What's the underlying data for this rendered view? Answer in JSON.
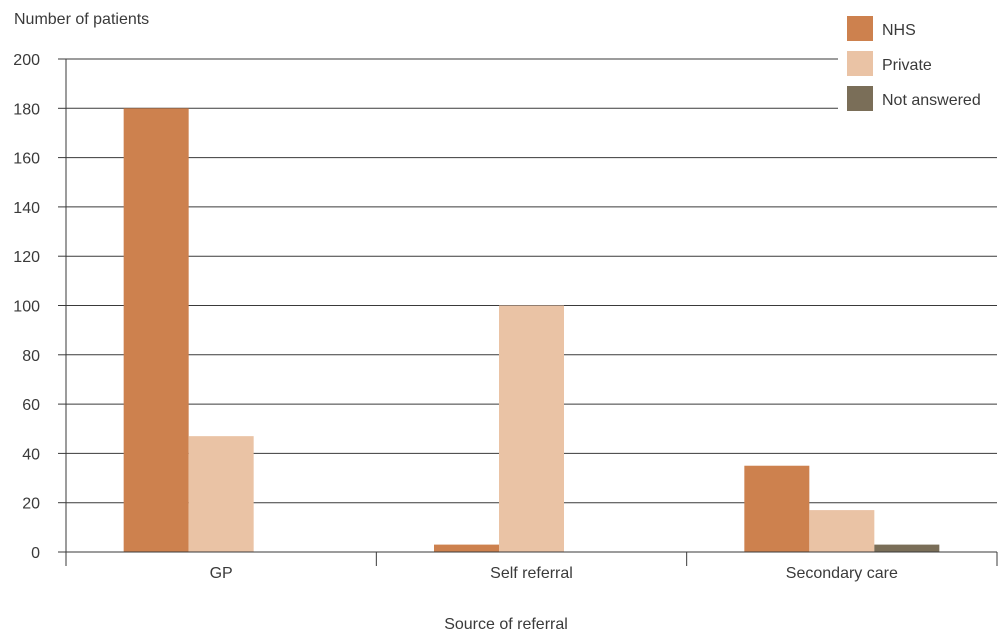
{
  "chart_data": {
    "type": "bar",
    "ylabel": "Number of patients",
    "xlabel": "Source of referral",
    "ylim": [
      0,
      200
    ],
    "yticks": [
      0,
      20,
      40,
      60,
      80,
      100,
      120,
      140,
      160,
      180,
      200
    ],
    "grid": "horizontal",
    "legend_position": "top-right",
    "categories": [
      "GP",
      "Self referral",
      "Secondary care"
    ],
    "series": [
      {
        "name": "NHS",
        "color": "#cd814e",
        "values": [
          180,
          3,
          35
        ]
      },
      {
        "name": "Private",
        "color": "#eac3a5",
        "values": [
          47,
          100,
          17
        ]
      },
      {
        "name": "Not answered",
        "color": "#7a6e58",
        "values": [
          0,
          0,
          3
        ]
      }
    ]
  }
}
